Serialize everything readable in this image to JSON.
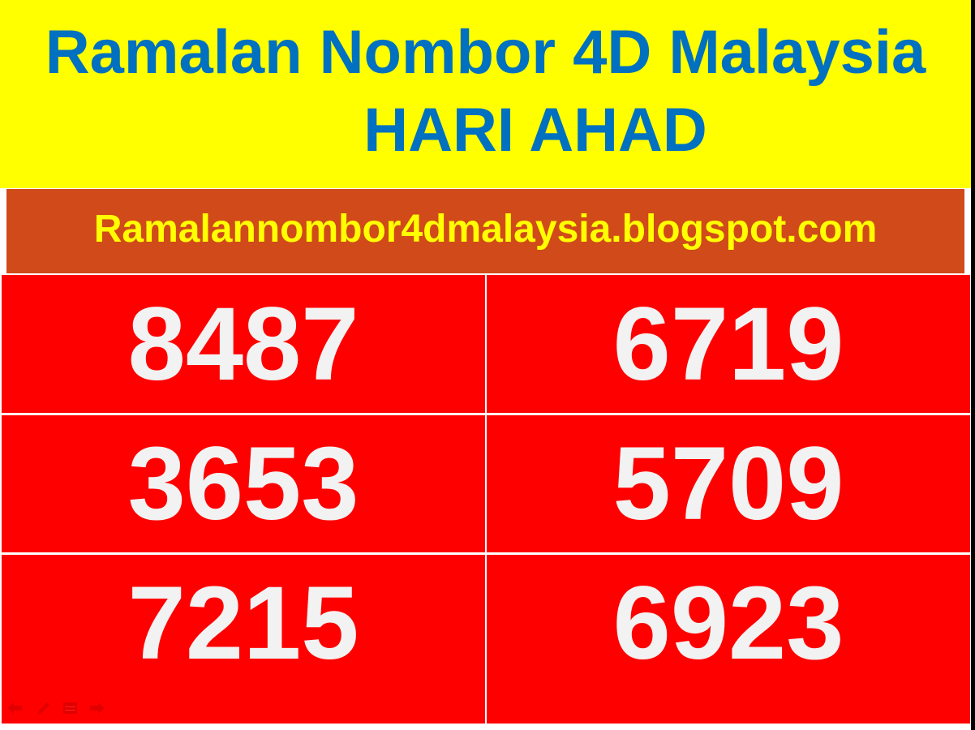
{
  "header": {
    "title_line1": "Ramalan Nombor 4D Malaysia",
    "title_line2": "HARI AHAD"
  },
  "banner": {
    "url": "Ramalannombor4dmalaysia.blogspot.com"
  },
  "numbers": [
    "8487",
    "6719",
    "3653",
    "5709",
    "7215",
    "6923"
  ],
  "colors": {
    "header_bg": "#ffff00",
    "title": "#0070c0",
    "banner_bg": "#d14a19",
    "banner_text": "#ffff00",
    "cell_bg": "#ff0000",
    "number": "#f2f2f2"
  },
  "nav_icons": [
    "arrow-left-icon",
    "pen-icon",
    "menu-icon",
    "arrow-right-icon"
  ]
}
